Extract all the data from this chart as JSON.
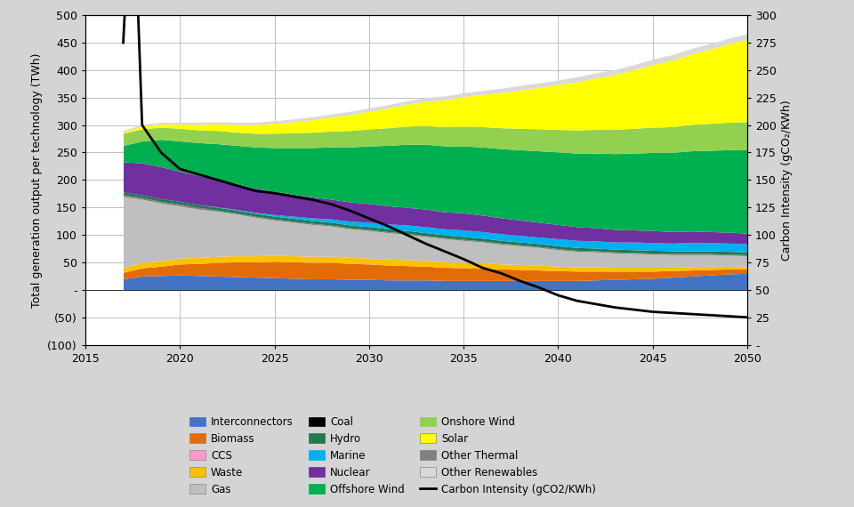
{
  "years": [
    2017,
    2018,
    2019,
    2020,
    2021,
    2022,
    2023,
    2024,
    2025,
    2026,
    2027,
    2028,
    2029,
    2030,
    2031,
    2032,
    2033,
    2034,
    2035,
    2036,
    2037,
    2038,
    2039,
    2040,
    2041,
    2042,
    2043,
    2044,
    2045,
    2046,
    2047,
    2048,
    2049,
    2050
  ],
  "stacks": {
    "Interconnectors": [
      20,
      25,
      26,
      27,
      26,
      25,
      24,
      23,
      22,
      21,
      20,
      20,
      19,
      19,
      18,
      18,
      18,
      17,
      17,
      17,
      17,
      17,
      17,
      17,
      17,
      18,
      19,
      20,
      21,
      23,
      25,
      27,
      29,
      30
    ],
    "Biomass": [
      12,
      15,
      17,
      20,
      22,
      25,
      27,
      28,
      30,
      30,
      30,
      30,
      29,
      28,
      27,
      26,
      25,
      24,
      23,
      22,
      21,
      20,
      19,
      18,
      17,
      16,
      15,
      14,
      13,
      12,
      11,
      10,
      9,
      8
    ],
    "Waste": [
      8,
      10,
      10,
      11,
      11,
      11,
      11,
      11,
      11,
      11,
      11,
      11,
      11,
      11,
      11,
      11,
      10,
      10,
      10,
      10,
      9,
      9,
      9,
      8,
      8,
      8,
      7,
      7,
      7,
      6,
      6,
      6,
      5,
      5
    ],
    "Gas": [
      130,
      115,
      105,
      95,
      88,
      82,
      76,
      70,
      64,
      61,
      58,
      55,
      52,
      50,
      48,
      46,
      44,
      42,
      40,
      38,
      36,
      34,
      32,
      30,
      28,
      27,
      26,
      25,
      24,
      23,
      22,
      21,
      20,
      19
    ],
    "Other Thermal": [
      3,
      3,
      3,
      3,
      3,
      2,
      2,
      2,
      2,
      2,
      2,
      2,
      2,
      2,
      2,
      2,
      2,
      2,
      2,
      2,
      2,
      2,
      2,
      2,
      2,
      2,
      2,
      2,
      2,
      2,
      2,
      2,
      2,
      2
    ],
    "Hydro": [
      5,
      5,
      5,
      5,
      5,
      5,
      5,
      5,
      5,
      5,
      5,
      5,
      5,
      5,
      5,
      5,
      5,
      5,
      5,
      5,
      5,
      5,
      5,
      5,
      5,
      5,
      5,
      5,
      5,
      5,
      5,
      5,
      5,
      5
    ],
    "Marine": [
      0,
      0,
      0,
      0,
      0,
      1,
      1,
      2,
      3,
      4,
      5,
      6,
      7,
      8,
      9,
      10,
      11,
      11,
      12,
      12,
      12,
      12,
      12,
      13,
      13,
      13,
      13,
      14,
      14,
      14,
      15,
      15,
      15,
      15
    ],
    "Nuclear": [
      55,
      58,
      58,
      55,
      53,
      50,
      47,
      44,
      42,
      40,
      38,
      36,
      35,
      34,
      33,
      32,
      32,
      31,
      31,
      30,
      29,
      28,
      27,
      26,
      25,
      24,
      23,
      22,
      22,
      21,
      21,
      20,
      20,
      19
    ],
    "Offshore Wind": [
      30,
      40,
      50,
      55,
      60,
      65,
      70,
      75,
      80,
      85,
      90,
      95,
      100,
      105,
      110,
      115,
      118,
      120,
      122,
      124,
      126,
      128,
      130,
      132,
      134,
      136,
      138,
      140,
      142,
      144,
      146,
      148,
      150,
      152
    ],
    "Onshore Wind": [
      22,
      22,
      22,
      23,
      23,
      24,
      24,
      25,
      26,
      27,
      28,
      29,
      30,
      31,
      32,
      33,
      34,
      35,
      36,
      37,
      38,
      39,
      40,
      41,
      42,
      43,
      44,
      45,
      46,
      47,
      48,
      49,
      50,
      51
    ],
    "Solar": [
      3,
      5,
      6,
      8,
      10,
      12,
      14,
      16,
      18,
      20,
      23,
      26,
      29,
      32,
      36,
      40,
      44,
      49,
      54,
      59,
      64,
      70,
      76,
      82,
      88,
      94,
      100,
      107,
      114,
      121,
      128,
      135,
      143,
      150
    ],
    "Other Renewables": [
      2,
      3,
      3,
      3,
      4,
      4,
      4,
      4,
      5,
      5,
      5,
      5,
      6,
      6,
      6,
      6,
      7,
      7,
      7,
      7,
      8,
      8,
      8,
      8,
      9,
      9,
      9,
      9,
      10,
      10,
      10,
      10,
      10,
      11
    ],
    "CCS": [
      0,
      0,
      0,
      0,
      0,
      0,
      0,
      0,
      0,
      0,
      0,
      0,
      0,
      0,
      0,
      0,
      0,
      0,
      0,
      0,
      0,
      0,
      0,
      0,
      0,
      0,
      0,
      0,
      0,
      0,
      0,
      0,
      0,
      0
    ]
  },
  "stack_colors": {
    "Interconnectors": "#4472C4",
    "Biomass": "#E36C09",
    "Waste": "#FFC000",
    "Gas": "#BFBFBF",
    "Other Thermal": "#808080",
    "Hydro": "#1F7A4F",
    "Marine": "#00B0F0",
    "Nuclear": "#7030A0",
    "Offshore Wind": "#00B050",
    "Onshore Wind": "#92D050",
    "Solar": "#FFFF00",
    "Other Renewables": "#D9D9D9",
    "CCS": "#FF99CC"
  },
  "carbon_intensity_years": [
    2017,
    2017.5,
    2018,
    2019,
    2020,
    2021,
    2022,
    2023,
    2024,
    2025,
    2026,
    2027,
    2028,
    2029,
    2030,
    2031,
    2032,
    2033,
    2034,
    2035,
    2036,
    2037,
    2038,
    2039,
    2040,
    2041,
    2042,
    2043,
    2044,
    2045,
    2046,
    2047,
    2048,
    2049,
    2050
  ],
  "carbon_intensity": [
    275,
    440,
    200,
    175,
    160,
    155,
    150,
    145,
    140,
    138,
    135,
    132,
    128,
    122,
    115,
    108,
    100,
    92,
    85,
    78,
    70,
    65,
    58,
    52,
    45,
    40,
    37,
    34,
    32,
    30,
    29,
    28,
    27,
    26,
    25
  ],
  "xlim": [
    2015,
    2050
  ],
  "ylim_left": [
    -100,
    500
  ],
  "ylim_right": [
    0,
    300
  ],
  "ylabel_left": "Total generation output per technology (TWh)",
  "ylabel_right": "Carbon Intensity (gCO₂/KWh)",
  "xticks": [
    2015,
    2020,
    2025,
    2030,
    2035,
    2040,
    2045,
    2050
  ],
  "yticks_left": [
    -100,
    -50,
    0,
    50,
    100,
    150,
    200,
    250,
    300,
    350,
    400,
    450,
    500
  ],
  "ytick_labels_left": [
    "(100)",
    "(50)",
    "-",
    "50",
    "100",
    "150",
    "200",
    "250",
    "300",
    "350",
    "400",
    "450",
    "500"
  ],
  "yticks_right": [
    0,
    25,
    50,
    75,
    100,
    125,
    150,
    175,
    200,
    225,
    250,
    275,
    300
  ],
  "ytick_labels_right": [
    "-",
    "25",
    "50",
    "75",
    "100",
    "125",
    "150",
    "175",
    "200",
    "225",
    "250",
    "275",
    "300"
  ],
  "background_color": "#D4D4D4",
  "grid_color": "#BFBFBF",
  "stack_order": [
    "Interconnectors",
    "Biomass",
    "Waste",
    "Gas",
    "Other Thermal",
    "Hydro",
    "Marine",
    "Nuclear",
    "Offshore Wind",
    "Onshore Wind",
    "Solar",
    "Other Renewables",
    "CCS"
  ],
  "legend_entries": [
    {
      "label": "Interconnectors",
      "color": "#4472C4",
      "type": "patch"
    },
    {
      "label": "Biomass",
      "color": "#E36C09",
      "type": "patch"
    },
    {
      "label": "CCS",
      "color": "#FF99CC",
      "type": "patch"
    },
    {
      "label": "Waste",
      "color": "#FFC000",
      "type": "patch"
    },
    {
      "label": "Gas",
      "color": "#BFBFBF",
      "type": "patch"
    },
    {
      "label": "Coal",
      "color": "#000000",
      "type": "patch"
    },
    {
      "label": "Hydro",
      "color": "#1F7A4F",
      "type": "patch"
    },
    {
      "label": "Marine",
      "color": "#00B0F0",
      "type": "patch"
    },
    {
      "label": "Nuclear",
      "color": "#7030A0",
      "type": "patch"
    },
    {
      "label": "Offshore Wind",
      "color": "#00B050",
      "type": "patch"
    },
    {
      "label": "Onshore Wind",
      "color": "#92D050",
      "type": "patch"
    },
    {
      "label": "Solar",
      "color": "#FFFF00",
      "type": "patch"
    },
    {
      "label": "Other Thermal",
      "color": "#808080",
      "type": "patch"
    },
    {
      "label": "Other Renewables",
      "color": "#D9D9D9",
      "type": "patch"
    },
    {
      "label": "Carbon Intensity (gCO2/KWh)",
      "color": "#000000",
      "type": "line"
    }
  ]
}
